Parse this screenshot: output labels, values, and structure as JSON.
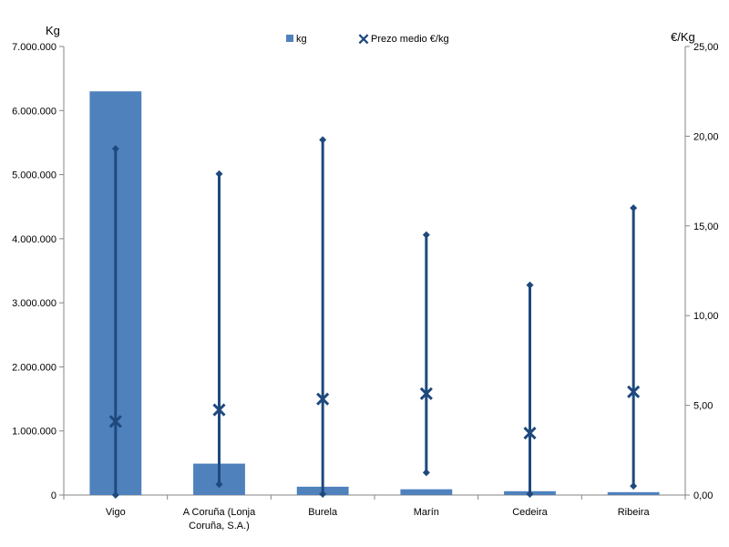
{
  "chart_data": {
    "type": "bar",
    "categories": [
      "Vigo",
      "A Coruña (Lonja|Coruña, S.A.)",
      "Burela",
      "Marín",
      "Cedeira",
      "Ribeira"
    ],
    "y_left": {
      "unit": "Kg",
      "ylim": [
        0,
        7000000
      ],
      "ticks": [
        "0",
        "1.000.000",
        "2.000.000",
        "3.000.000",
        "4.000.000",
        "5.000.000",
        "6.000.000",
        "7.000.000"
      ]
    },
    "y_right": {
      "unit": "€/Kg",
      "ylim": [
        0,
        25
      ],
      "ticks": [
        "0,00",
        "5,00",
        "10,00",
        "15,00",
        "20,00",
        "25,00"
      ]
    },
    "series": [
      {
        "name": "kg",
        "type": "bar",
        "axis": "left",
        "values": [
          6300000,
          490000,
          130000,
          90000,
          60000,
          45000
        ]
      },
      {
        "name": "Prezo medio €/kg",
        "type": "high-low-average",
        "axis": "right",
        "values": [
          4.1,
          4.75,
          5.35,
          5.65,
          3.45,
          5.75
        ],
        "high": [
          19.3,
          17.9,
          19.8,
          14.5,
          11.7,
          16.0
        ],
        "low": [
          0.0,
          0.6,
          0.05,
          1.25,
          0.05,
          0.5
        ]
      }
    ],
    "legend_position": "top-center",
    "grid": false,
    "colors": {
      "bar": "#4f81bd",
      "line": "#1f497d",
      "axis": "#868686"
    }
  }
}
